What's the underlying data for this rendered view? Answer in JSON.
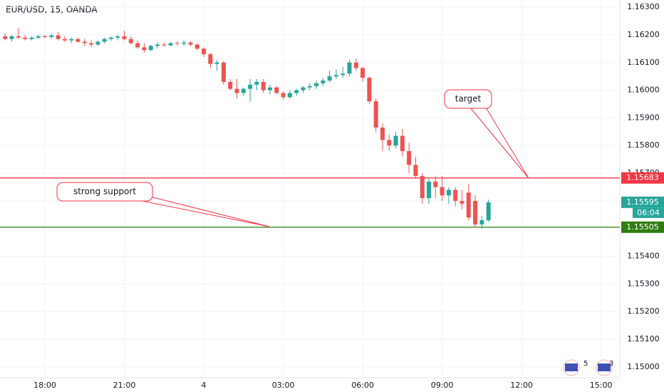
{
  "chart_data": {
    "type": "candlestick",
    "title": "EUR/USD, 15, OANDA",
    "x": [
      16.5,
      16.75,
      17,
      17.25,
      17.5,
      17.75,
      18,
      18.25,
      18.5,
      18.75,
      19,
      19.25,
      19.5,
      19.75,
      20,
      20.25,
      20.5,
      20.75,
      21,
      21.25,
      21.5,
      21.75,
      22,
      22.25,
      22.5,
      22.75,
      23,
      23.25,
      23.5,
      23.75,
      24,
      24.25,
      24.5,
      24.75,
      25,
      25.25,
      25.5,
      25.75,
      26,
      26.25,
      26.5,
      26.75,
      27,
      27.25,
      27.5,
      27.75,
      28,
      28.25,
      28.5,
      28.75,
      29,
      29.25,
      29.5,
      29.75,
      30,
      30.25,
      30.5,
      30.75,
      31,
      31.25,
      31.5,
      31.75,
      32,
      32.25,
      32.5,
      32.75,
      33,
      33.25,
      33.5,
      33.75,
      34,
      34.25,
      34.5,
      34.75
    ],
    "open": [
      1.16195,
      1.16185,
      1.16195,
      1.1619,
      1.16185,
      1.1619,
      1.16195,
      1.16192,
      1.16198,
      1.16185,
      1.1618,
      1.16185,
      1.16175,
      1.1617,
      1.16165,
      1.16175,
      1.16185,
      1.1619,
      1.16195,
      1.16185,
      1.1617,
      1.16155,
      1.16145,
      1.1616,
      1.16165,
      1.16162,
      1.1617,
      1.16168,
      1.16172,
      1.16165,
      1.1615,
      1.1613,
      1.16095,
      1.161,
      1.1603,
      1.16005,
      1.1599,
      1.16005,
      1.1602,
      1.1603,
      1.16,
      1.1601,
      1.1599,
      1.15975,
      1.1599,
      1.16,
      1.1601,
      1.16015,
      1.16025,
      1.16035,
      1.1605,
      1.16055,
      1.1606,
      1.161,
      1.1608,
      1.16045,
      1.1596,
      1.15865,
      1.1582,
      1.158,
      1.15835,
      1.1578,
      1.1573,
      1.1569,
      1.1561,
      1.1567,
      1.1565,
      1.1562,
      1.1564,
      1.156,
      1.1563,
      1.156,
      1.15515,
      1.1553
    ],
    "high": [
      1.16205,
      1.162,
      1.16225,
      1.162,
      1.16195,
      1.162,
      1.162,
      1.16205,
      1.1621,
      1.16195,
      1.1619,
      1.1619,
      1.16185,
      1.1618,
      1.1618,
      1.1619,
      1.16195,
      1.162,
      1.16215,
      1.16195,
      1.1618,
      1.1617,
      1.16165,
      1.16175,
      1.16172,
      1.16175,
      1.16178,
      1.1618,
      1.16178,
      1.1617,
      1.16155,
      1.16135,
      1.1611,
      1.16105,
      1.1604,
      1.1604,
      1.1601,
      1.1604,
      1.1604,
      1.1604,
      1.1602,
      1.16015,
      1.15995,
      1.16,
      1.16005,
      1.16015,
      1.16025,
      1.16035,
      1.16045,
      1.1607,
      1.16075,
      1.16085,
      1.1611,
      1.16115,
      1.16085,
      1.1605,
      1.1597,
      1.1588,
      1.1584,
      1.1585,
      1.1586,
      1.1581,
      1.1576,
      1.157,
      1.1568,
      1.1569,
      1.1569,
      1.1565,
      1.1565,
      1.1564,
      1.1566,
      1.1562,
      1.15545,
      1.15605
    ],
    "low": [
      1.1618,
      1.16175,
      1.16185,
      1.1618,
      1.1618,
      1.16185,
      1.16188,
      1.16185,
      1.1618,
      1.16175,
      1.1617,
      1.16172,
      1.1616,
      1.16155,
      1.1616,
      1.1617,
      1.16178,
      1.1618,
      1.1618,
      1.16165,
      1.1615,
      1.16135,
      1.1614,
      1.1615,
      1.16158,
      1.1616,
      1.16162,
      1.1616,
      1.1616,
      1.16145,
      1.1612,
      1.1608,
      1.1607,
      1.1602,
      1.16,
      1.1597,
      1.1598,
      1.1596,
      1.16,
      1.1599,
      1.15985,
      1.15985,
      1.15965,
      1.1597,
      1.1598,
      1.1599,
      1.16,
      1.16005,
      1.16015,
      1.1603,
      1.1604,
      1.16045,
      1.1605,
      1.1607,
      1.1603,
      1.1595,
      1.1585,
      1.1578,
      1.1578,
      1.1579,
      1.1576,
      1.157,
      1.1568,
      1.1559,
      1.1559,
      1.1561,
      1.156,
      1.1559,
      1.1558,
      1.1557,
      1.1553,
      1.15505,
      1.155,
      1.15525
    ],
    "close": [
      1.16185,
      1.16195,
      1.1619,
      1.16185,
      1.1619,
      1.16195,
      1.16192,
      1.16198,
      1.16185,
      1.1618,
      1.16185,
      1.16175,
      1.1617,
      1.16165,
      1.16175,
      1.16185,
      1.1619,
      1.16195,
      1.16185,
      1.1617,
      1.16155,
      1.16145,
      1.1616,
      1.16165,
      1.16162,
      1.1617,
      1.16168,
      1.16172,
      1.16165,
      1.1615,
      1.1613,
      1.16095,
      1.161,
      1.1603,
      1.16005,
      1.1599,
      1.16005,
      1.1602,
      1.1603,
      1.16,
      1.1601,
      1.1599,
      1.15975,
      1.1599,
      1.16,
      1.1601,
      1.16015,
      1.16025,
      1.16035,
      1.1605,
      1.16055,
      1.1606,
      1.161,
      1.1608,
      1.16045,
      1.1596,
      1.15865,
      1.1582,
      1.158,
      1.15835,
      1.1578,
      1.1573,
      1.1569,
      1.1561,
      1.1567,
      1.1565,
      1.1562,
      1.1564,
      1.156,
      1.1559,
      1.1554,
      1.15515,
      1.1553,
      1.15595
    ],
    "up_color": "#26a69a",
    "down_color": "#ef5350",
    "xlim": [
      16.305,
      39.71
    ],
    "ylim": [
      1.14961,
      1.16326
    ],
    "xticks": [
      {
        "value": 18,
        "label": "18:00"
      },
      {
        "value": 21,
        "label": "21:00"
      },
      {
        "value": 24,
        "label": "4"
      },
      {
        "value": 27,
        "label": "03:00"
      },
      {
        "value": 30,
        "label": "06:00"
      },
      {
        "value": 33,
        "label": "09:00"
      },
      {
        "value": 36,
        "label": "12:00"
      },
      {
        "value": 39,
        "label": "15:00"
      }
    ],
    "yticks": [
      {
        "value": 1.15,
        "label": "1.15000"
      },
      {
        "value": 1.151,
        "label": "1.15100"
      },
      {
        "value": 1.152,
        "label": "1.15200"
      },
      {
        "value": 1.153,
        "label": "1.15300"
      },
      {
        "value": 1.154,
        "label": "1.15400"
      },
      {
        "value": 1.155,
        "label": "1.15500"
      },
      {
        "value": 1.156,
        "label": "1.15600"
      },
      {
        "value": 1.157,
        "label": "1.15700"
      },
      {
        "value": 1.158,
        "label": "1.15800"
      },
      {
        "value": 1.159,
        "label": "1.15900"
      },
      {
        "value": 1.16,
        "label": "1.16000"
      },
      {
        "value": 1.161,
        "label": "1.16100"
      },
      {
        "value": 1.162,
        "label": "1.16200"
      },
      {
        "value": 1.163,
        "label": "1.16300"
      }
    ],
    "grid": true,
    "levels": [
      {
        "value": 1.15683,
        "color": "#f23645"
      },
      {
        "value": 1.15505,
        "color": "#2e7d0f"
      }
    ],
    "countdown": "06:04",
    "annotations": [
      "target",
      "strong support"
    ],
    "event_counts": [
      5,
      3
    ]
  }
}
